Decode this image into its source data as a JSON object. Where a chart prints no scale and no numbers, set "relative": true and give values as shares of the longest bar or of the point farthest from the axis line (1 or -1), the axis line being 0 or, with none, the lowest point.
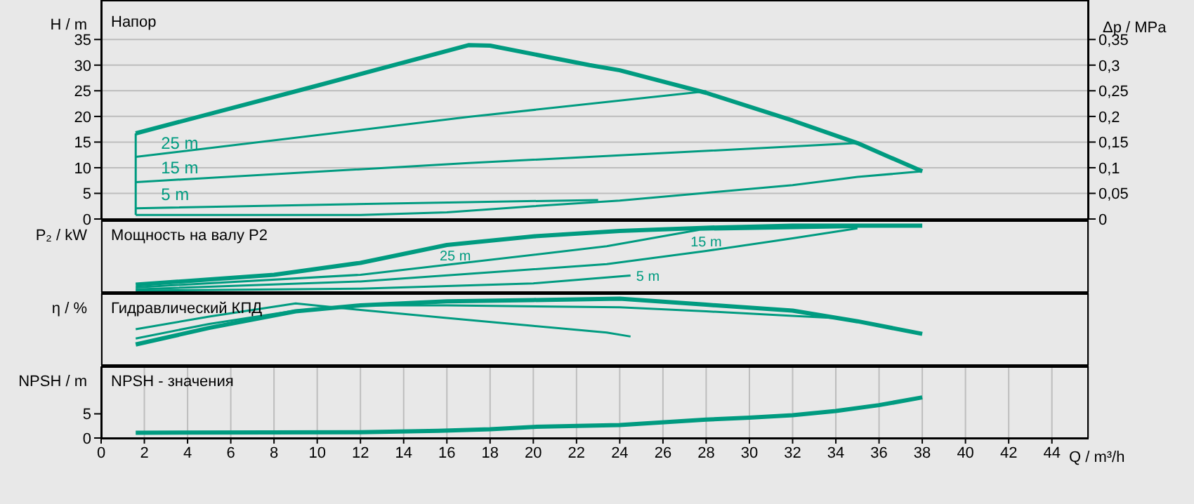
{
  "chart_data": [
    {
      "type": "line",
      "title": "Напор",
      "ylabel": "H / m",
      "y2label": "Δp / MPa",
      "xlim": [
        0,
        45.7
      ],
      "xticks": [
        0,
        2,
        4,
        6,
        8,
        10,
        12,
        14,
        16,
        18,
        20,
        22,
        24,
        26,
        28,
        30,
        32,
        34,
        36,
        38,
        40,
        42,
        44
      ],
      "ylim": [
        0,
        42.7
      ],
      "yticks": [
        0,
        5,
        10,
        15,
        20,
        25,
        30,
        35
      ],
      "y2lim": [
        0,
        0.427
      ],
      "y2ticks": [
        0,
        {
          "value": 0.05,
          "label": "0,05"
        },
        {
          "value": 0.1,
          "label": "0,1"
        },
        {
          "value": 0.15,
          "label": "0,15"
        },
        {
          "value": 0.2,
          "label": "0,2"
        },
        {
          "value": 0.25,
          "label": "0,25"
        },
        {
          "value": 0.3,
          "label": "0,3"
        },
        {
          "value": 0.35,
          "label": "0,35"
        }
      ],
      "tick_labels": "y",
      "grid": true,
      "series": [
        {
          "color": "#009b80",
          "x": [
            1.6,
            10,
            17,
            18,
            22.6,
            24,
            28,
            32,
            35,
            38
          ],
          "values": [
            16.7,
            26,
            33.9,
            33.8,
            30,
            29,
            24.6,
            19.2,
            14.8,
            9.3
          ]
        },
        {
          "color": "#009b80",
          "x": [
            1.6,
            12,
            16,
            20,
            24,
            28,
            32,
            35,
            38
          ],
          "values": [
            0.8,
            0.8,
            1.3,
            2.5,
            3.6,
            5.1,
            6.6,
            8.2,
            9.3
          ]
        },
        {
          "color": "#009b80",
          "x": [
            1.6,
            1.6
          ],
          "values": [
            0.8,
            16.7
          ]
        },
        {
          "name": "25 m",
          "color": "#009b80",
          "x": [
            1.6,
            17,
            28
          ],
          "values": [
            12.1,
            19.9,
            24.9
          ]
        },
        {
          "name": "15 m",
          "color": "#009b80",
          "x": [
            1.6,
            17,
            35
          ],
          "values": [
            7.2,
            10.9,
            14.8
          ]
        },
        {
          "name": "5 m",
          "color": "#009b80",
          "x": [
            1.6,
            17,
            23
          ],
          "values": [
            2.1,
            3.3,
            3.7
          ]
        }
      ]
    },
    {
      "type": "line",
      "title": "Мощность на валу P2",
      "ylabel": "P₂ / kW",
      "relative": true,
      "xlim": [
        0,
        45.7
      ],
      "xticks": [
        0,
        2,
        4,
        6,
        8,
        10,
        12,
        14,
        16,
        18,
        20,
        22,
        24,
        26,
        28,
        30,
        32,
        34,
        36,
        38,
        40,
        42,
        44
      ],
      "tick_labels": false,
      "grid": "x",
      "series": [
        {
          "color": "#009b80",
          "x": [
            1.6,
            8,
            12,
            16,
            20,
            24,
            28,
            32,
            38
          ],
          "values": [
            0.11,
            0.26,
            0.44,
            0.71,
            0.84,
            0.92,
            0.97,
            1,
            1
          ]
        },
        {
          "name": "25 m",
          "color": "#009b80",
          "x": [
            1.6,
            12,
            16,
            23.4,
            27.7,
            35
          ],
          "values": [
            0.07,
            0.26,
            0.41,
            0.69,
            0.94,
            0.98
          ]
        },
        {
          "name": "15 m",
          "color": "#009b80",
          "x": [
            1.6,
            12,
            23.4,
            28,
            32,
            35
          ],
          "values": [
            0.04,
            0.16,
            0.42,
            0.62,
            0.81,
            0.96
          ]
        },
        {
          "name": "5 m",
          "color": "#009b80",
          "x": [
            1.6,
            12,
            20,
            24.5
          ],
          "values": [
            0.02,
            0.05,
            0.13,
            0.25
          ]
        }
      ]
    },
    {
      "type": "line",
      "title": "Гидравлический КПД",
      "ylabel": "η / %",
      "relative": true,
      "xlim": [
        0,
        45.7
      ],
      "xticks": [
        0,
        2,
        4,
        6,
        8,
        10,
        12,
        14,
        16,
        18,
        20,
        22,
        24,
        26,
        28,
        30,
        32,
        34,
        36,
        38,
        40,
        42,
        44
      ],
      "tick_labels": false,
      "grid": "x",
      "series": [
        {
          "color": "#009b80",
          "x": [
            1.6,
            5,
            9,
            12,
            16,
            20,
            24,
            28,
            32,
            35,
            38
          ],
          "values": [
            0.31,
            0.56,
            0.81,
            0.9,
            0.96,
            0.98,
            1,
            0.91,
            0.82,
            0.66,
            0.47
          ]
        },
        {
          "color": "#009b80",
          "x": [
            1.6,
            5,
            9,
            12,
            16,
            24,
            28,
            32,
            33.9
          ],
          "values": [
            0.4,
            0.62,
            0.82,
            0.9,
            0.9,
            0.87,
            0.81,
            0.74,
            0.71
          ]
        },
        {
          "color": "#009b80",
          "x": [
            1.6,
            5,
            9,
            12,
            16,
            20,
            23.4,
            24.5
          ],
          "values": [
            0.54,
            0.73,
            0.93,
            0.83,
            0.71,
            0.59,
            0.49,
            0.43
          ]
        }
      ]
    },
    {
      "type": "line",
      "title": "NPSH - значения",
      "ylabel": "NPSH / m",
      "xlabel": "Q / m³/h",
      "xlim": [
        0,
        45.7
      ],
      "xticks": [
        0,
        2,
        4,
        6,
        8,
        10,
        12,
        14,
        16,
        18,
        20,
        22,
        24,
        26,
        28,
        30,
        32,
        34,
        36,
        38,
        40,
        42,
        44
      ],
      "ylim": [
        0,
        14.8
      ],
      "yticks": [
        0,
        5
      ],
      "grid": "x",
      "series": [
        {
          "color": "#009b80",
          "x": [
            1.6,
            12,
            15.6,
            18,
            20,
            24,
            28,
            30,
            32,
            34,
            36,
            38
          ],
          "values": [
            1.1,
            1.2,
            1.5,
            1.8,
            2.3,
            2.7,
            3.8,
            4.2,
            4.7,
            5.6,
            6.8,
            8.4
          ]
        }
      ]
    }
  ]
}
